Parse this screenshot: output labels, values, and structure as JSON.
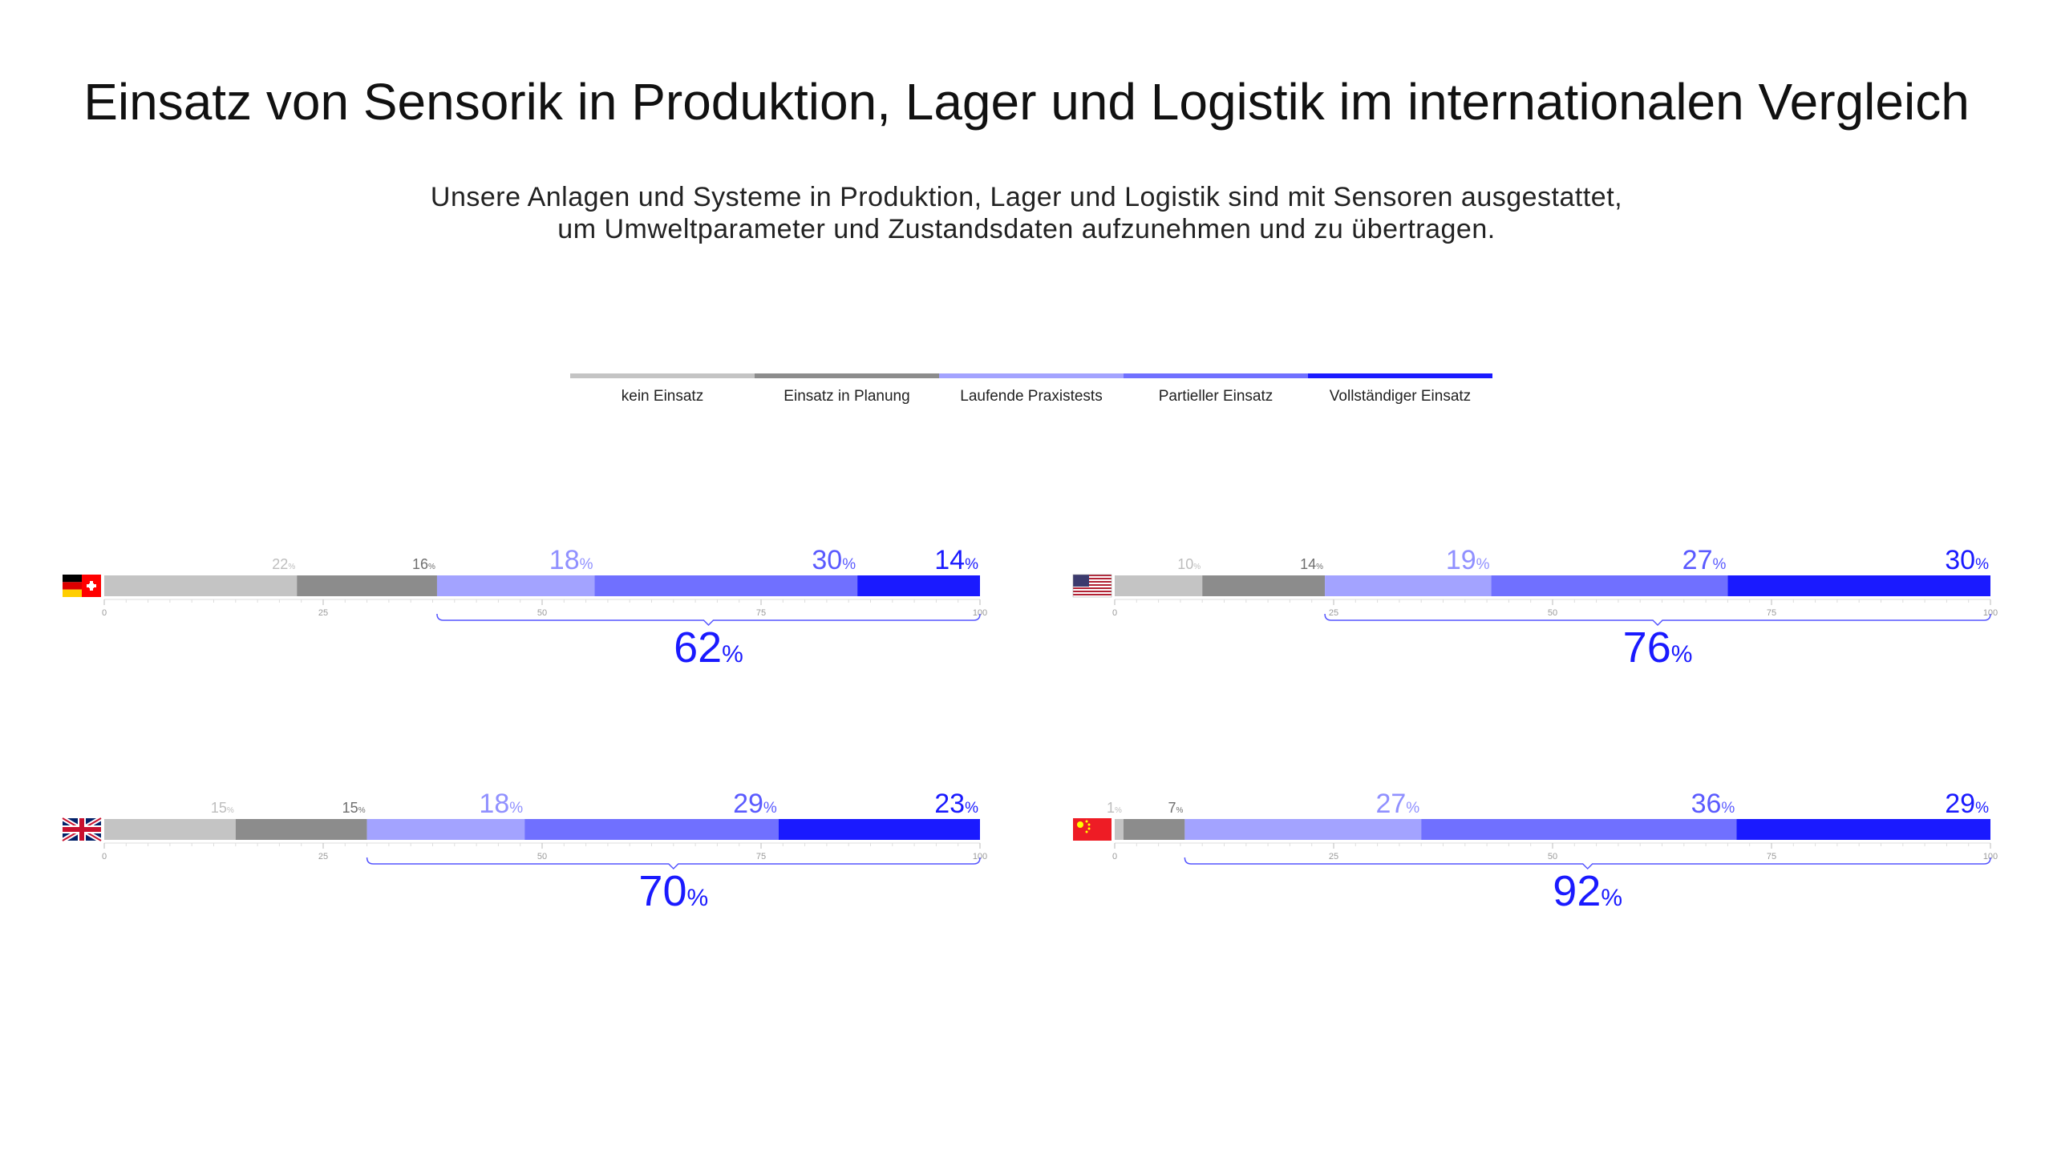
{
  "title": "Einsatz von Sensorik in Produktion, Lager und Logistik im internationalen Vergleich",
  "subtitle": {
    "line1": "Unsere Anlagen und Systeme in Produktion, Lager und Logistik sind mit Sensoren ausgestattet,",
    "line2": "um Umweltparameter und Zustandsdaten aufzunehmen und zu übertragen."
  },
  "legend": [
    {
      "label": "kein Einsatz",
      "color": "#c4c4c4"
    },
    {
      "label": "Einsatz in Planung",
      "color": "#8c8c8c"
    },
    {
      "label": "Laufende Praxistests",
      "color": "#a3a3ff"
    },
    {
      "label": "Partieller Einsatz",
      "color": "#7070ff"
    },
    {
      "label": "Vollständiger Einsatz",
      "color": "#1a1aff"
    }
  ],
  "label_colors": [
    "#bdbdbd",
    "#6e6e6e",
    "#9090ff",
    "#5a5aff",
    "#1a1aff"
  ],
  "chart_data": [
    {
      "type": "bar",
      "stacked": true,
      "country": "DACH",
      "flag": "germany-switzerland-flag",
      "xlim": [
        0,
        100
      ],
      "ticks": [
        0,
        25,
        50,
        75,
        100
      ],
      "series": [
        {
          "name": "kein Einsatz",
          "value": 22
        },
        {
          "name": "Einsatz in Planung",
          "value": 16
        },
        {
          "name": "Laufende Praxistests",
          "value": 18
        },
        {
          "name": "Partieller Einsatz",
          "value": 30
        },
        {
          "name": "Vollständiger Einsatz",
          "value": 14
        }
      ],
      "total": {
        "value": 62,
        "from_series": 2
      }
    },
    {
      "type": "bar",
      "stacked": true,
      "country": "USA",
      "flag": "usa-flag",
      "xlim": [
        0,
        100
      ],
      "ticks": [
        0,
        25,
        50,
        75,
        100
      ],
      "series": [
        {
          "name": "kein Einsatz",
          "value": 10
        },
        {
          "name": "Einsatz in Planung",
          "value": 14
        },
        {
          "name": "Laufende Praxistests",
          "value": 19
        },
        {
          "name": "Partieller Einsatz",
          "value": 27
        },
        {
          "name": "Vollständiger Einsatz",
          "value": 30
        }
      ],
      "total": {
        "value": 76,
        "from_series": 2
      }
    },
    {
      "type": "bar",
      "stacked": true,
      "country": "UK",
      "flag": "uk-flag",
      "xlim": [
        0,
        100
      ],
      "ticks": [
        0,
        25,
        50,
        75,
        100
      ],
      "series": [
        {
          "name": "kein Einsatz",
          "value": 15
        },
        {
          "name": "Einsatz in Planung",
          "value": 15
        },
        {
          "name": "Laufende Praxistests",
          "value": 18
        },
        {
          "name": "Partieller Einsatz",
          "value": 29
        },
        {
          "name": "Vollständiger Einsatz",
          "value": 23
        }
      ],
      "total": {
        "value": 70,
        "from_series": 2
      }
    },
    {
      "type": "bar",
      "stacked": true,
      "country": "China",
      "flag": "china-flag",
      "xlim": [
        0,
        100
      ],
      "ticks": [
        0,
        25,
        50,
        75,
        100
      ],
      "series": [
        {
          "name": "kein Einsatz",
          "value": 1
        },
        {
          "name": "Einsatz in Planung",
          "value": 7
        },
        {
          "name": "Laufende Praxistests",
          "value": 27
        },
        {
          "name": "Partieller Einsatz",
          "value": 36
        },
        {
          "name": "Vollständiger Einsatz",
          "value": 29
        }
      ],
      "total": {
        "value": 92,
        "from_series": 2
      }
    }
  ],
  "percent_sign": "%"
}
